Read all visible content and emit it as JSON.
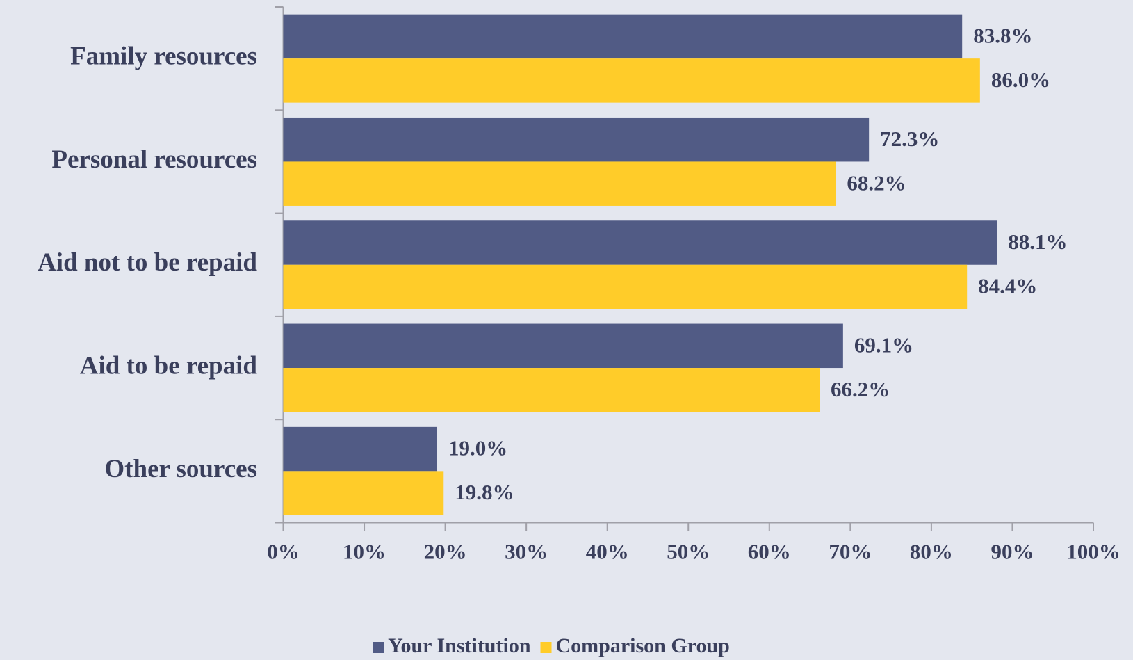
{
  "chart_data": {
    "type": "bar",
    "orientation": "horizontal",
    "categories": [
      "Family resources",
      "Personal resources",
      "Aid not to be repaid",
      "Aid to be repaid",
      "Other sources"
    ],
    "series": [
      {
        "name": "Your Institution",
        "color": "#515b85",
        "values": [
          83.8,
          72.3,
          88.1,
          69.1,
          19.0
        ],
        "value_labels": [
          "83.8%",
          "72.3%",
          "88.1%",
          "69.1%",
          "19.0%"
        ]
      },
      {
        "name": "Comparison Group",
        "color": "#ffcc29",
        "values": [
          86.0,
          68.2,
          84.4,
          66.2,
          19.8
        ],
        "value_labels": [
          "86.0%",
          "68.2%",
          "84.4%",
          "66.2%",
          "19.8%"
        ]
      }
    ],
    "xlim": [
      0,
      100
    ],
    "xticks": [
      {
        "value": 0,
        "label": "0%"
      },
      {
        "value": 10,
        "label": "10%"
      },
      {
        "value": 20,
        "label": "20%"
      },
      {
        "value": 30,
        "label": "30%"
      },
      {
        "value": 40,
        "label": "40%"
      },
      {
        "value": 50,
        "label": "50%"
      },
      {
        "value": 60,
        "label": "60%"
      },
      {
        "value": 70,
        "label": "70%"
      },
      {
        "value": 80,
        "label": "80%"
      },
      {
        "value": 90,
        "label": "90%"
      },
      {
        "value": 100,
        "label": "100%"
      }
    ],
    "grid": false,
    "legend": "bottom"
  }
}
